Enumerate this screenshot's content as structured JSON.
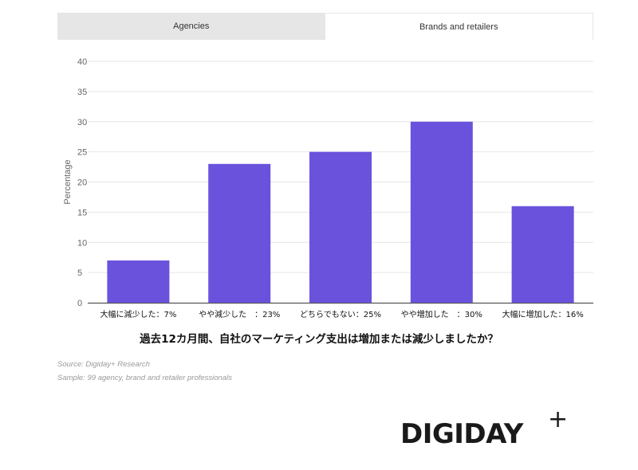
{
  "tabs": [
    {
      "label": "Agencies",
      "active": false
    },
    {
      "label": "Brands and retailers",
      "active": true
    }
  ],
  "chart_data": {
    "type": "bar",
    "categories": [
      "大幅に減少した：7%",
      "やや減少した　：23%",
      "どちらでもない：25%",
      "やや増加した　：30%",
      "大幅に増加した：16%"
    ],
    "values": [
      7,
      23,
      25,
      30,
      16
    ],
    "title": "過去12カ月間、自社のマーケティング支出は増加または減少しましたか？",
    "xlabel": "",
    "ylabel": "Percentage",
    "ylim": [
      0,
      40
    ],
    "yticks": [
      0,
      5,
      10,
      15,
      20,
      25,
      30,
      35,
      40
    ],
    "grid": true,
    "bar_color": "#6a52dd"
  },
  "source": "Source: Digiday+ Research",
  "sample": "Sample: 99 agency, brand and retailer professionals",
  "logo": {
    "text": "DIGIDAY",
    "plus": "+"
  }
}
